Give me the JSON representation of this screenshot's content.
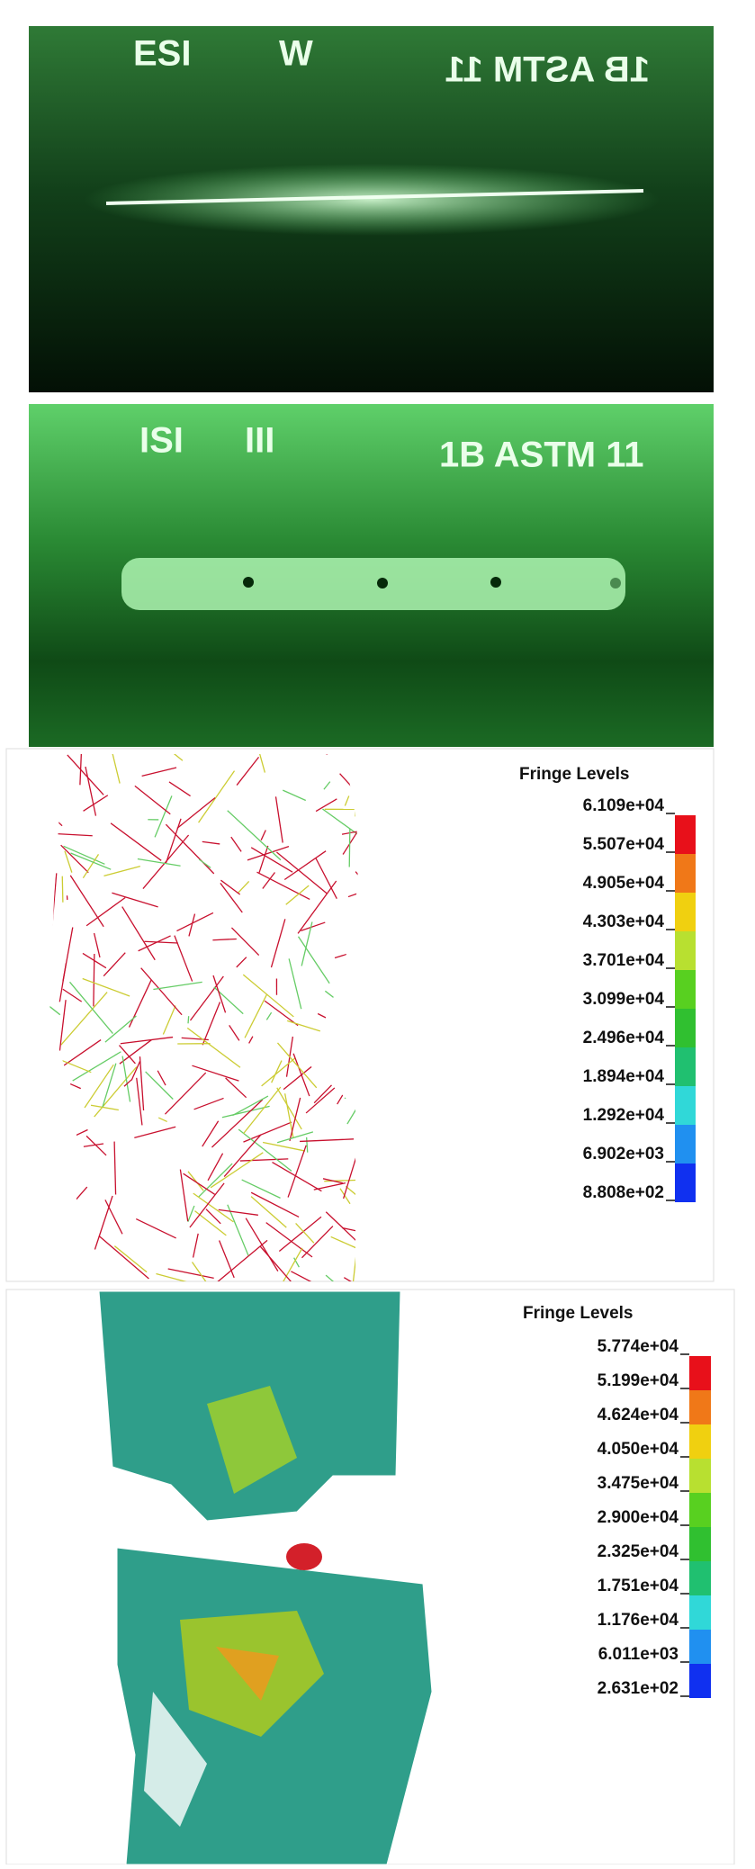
{
  "panels": [
    {
      "labels": [
        "ESI",
        "W",
        "1B ASTM 11"
      ]
    },
    {
      "labels": [
        "ISI",
        "III",
        "1B ASTM 11"
      ]
    },
    {
      "legend": {
        "title": "Fringe Levels",
        "levels": [
          "6.109e+04",
          "5.507e+04",
          "4.905e+04",
          "4.303e+04",
          "3.701e+04",
          "3.099e+04",
          "2.496e+04",
          "1.894e+04",
          "1.292e+04",
          "6.902e+03",
          "8.808e+02"
        ]
      }
    },
    {
      "legend": {
        "title": "Fringe Levels",
        "levels": [
          "5.774e+04",
          "5.199e+04",
          "4.624e+04",
          "4.050e+04",
          "3.475e+04",
          "2.900e+04",
          "2.325e+04",
          "1.751e+04",
          "1.176e+04",
          "6.011e+03",
          "2.631e+02"
        ]
      }
    }
  ]
}
